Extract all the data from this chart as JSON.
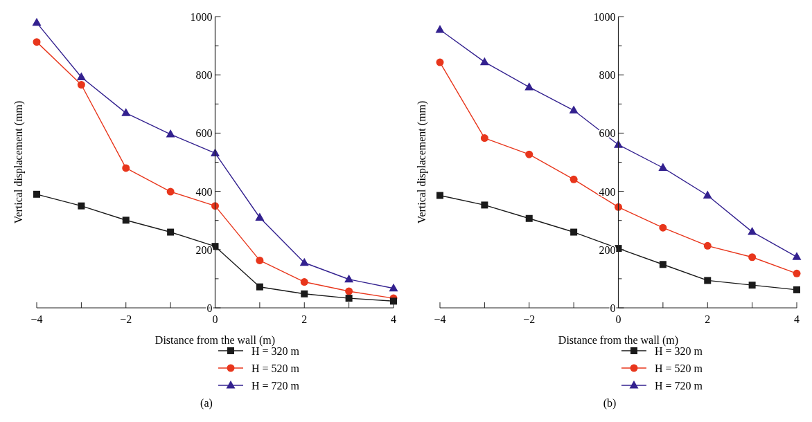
{
  "chart_data": [
    {
      "type": "line",
      "xlabel": "Distance from the wall (m)",
      "ylabel": "Vertical displacement (mm)",
      "x": [
        -4,
        -3,
        -2,
        -1,
        0,
        1,
        2,
        3,
        4
      ],
      "xlim": [
        -4,
        4
      ],
      "ylim": [
        0,
        1000
      ],
      "xticks": [
        -4,
        {
          "value": -3,
          "label": null
        },
        -2,
        {
          "value": -1,
          "label": null
        },
        0,
        {
          "value": 1,
          "label": null
        },
        2,
        {
          "value": 3,
          "label": null
        },
        4
      ],
      "yticks": [
        0,
        {
          "value": 100,
          "label": null
        },
        200,
        {
          "value": 300,
          "label": null
        },
        400,
        {
          "value": 500,
          "label": null
        },
        600,
        {
          "value": 700,
          "label": null
        },
        800,
        {
          "value": 900,
          "label": null
        },
        1000
      ],
      "grid": false,
      "legend": "bottom",
      "line_style": "solid",
      "annotations": [
        "(a)"
      ],
      "series": [
        {
          "name": "H = 320 m",
          "color": "#1a1a1a",
          "marker": "square",
          "values": [
            390,
            350,
            301,
            260,
            211,
            72,
            48,
            33,
            23
          ]
        },
        {
          "name": "H = 520 m",
          "color": "#e8361c",
          "marker": "circle",
          "values": [
            913,
            766,
            480,
            399,
            350,
            163,
            89,
            57,
            33
          ]
        },
        {
          "name": "H = 720 m",
          "color": "#33218f",
          "marker": "triangle",
          "values": [
            979,
            792,
            669,
            596,
            531,
            310,
            155,
            98,
            67
          ]
        }
      ]
    },
    {
      "type": "line",
      "xlabel": "Distance from the wall (m)",
      "ylabel": "Vertical displacement (mm)",
      "x": [
        -4,
        -3,
        -2,
        -1,
        0,
        1,
        2,
        3,
        4
      ],
      "xlim": [
        -4,
        4
      ],
      "ylim": [
        0,
        1000
      ],
      "xticks": [
        -4,
        {
          "value": -3,
          "label": null
        },
        -2,
        {
          "value": -1,
          "label": null
        },
        0,
        {
          "value": 1,
          "label": null
        },
        2,
        {
          "value": 3,
          "label": null
        },
        4
      ],
      "yticks": [
        0,
        {
          "value": 100,
          "label": null
        },
        200,
        {
          "value": 300,
          "label": null
        },
        400,
        {
          "value": 500,
          "label": null
        },
        600,
        {
          "value": 700,
          "label": null
        },
        800,
        {
          "value": 900,
          "label": null
        },
        1000
      ],
      "grid": false,
      "legend": "bottom",
      "line_style": "solid",
      "annotations": [
        "(b)"
      ],
      "series": [
        {
          "name": "H = 320 m",
          "color": "#1a1a1a",
          "marker": "square",
          "values": [
            386,
            353,
            307,
            260,
            204,
            149,
            94,
            78,
            62
          ]
        },
        {
          "name": "H = 520 m",
          "color": "#e8361c",
          "marker": "circle",
          "values": [
            843,
            583,
            527,
            441,
            346,
            275,
            213,
            174,
            118
          ]
        },
        {
          "name": "H = 720 m",
          "color": "#33218f",
          "marker": "triangle",
          "values": [
            955,
            844,
            758,
            678,
            560,
            481,
            386,
            261,
            175
          ]
        }
      ]
    }
  ]
}
